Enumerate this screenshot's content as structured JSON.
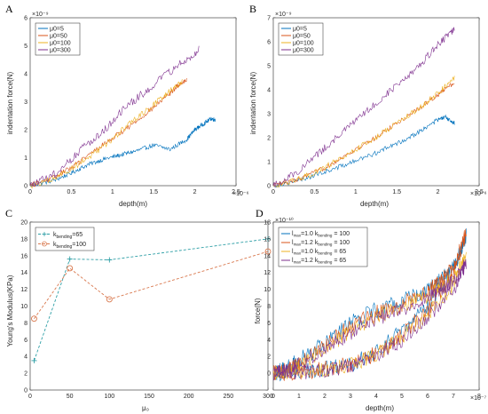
{
  "colors": {
    "blue": "#0072BD",
    "orange": "#D95319",
    "yellow": "#EDB120",
    "purple": "#7E2F8E",
    "teal": "#2E9FA6",
    "salmon": "#D9794F"
  },
  "chart_data": [
    {
      "panel": "A",
      "type": "line",
      "xlabel": "depth(m)",
      "ylabel": "indentation force(N)",
      "x_exponent": "×10⁻⁶",
      "y_exponent": "×10⁻⁹",
      "xlim": [
        0,
        2.5
      ],
      "ylim": [
        0,
        6
      ],
      "xticks": [
        0,
        0.5,
        1,
        1.5,
        2,
        2.5
      ],
      "xtick_labels": [
        "0",
        "0.5",
        "1",
        "1.5",
        "2",
        "2.5"
      ],
      "yticks": [
        0,
        1,
        2,
        3,
        4,
        5,
        6
      ],
      "ytick_labels": [
        "0",
        "1",
        "2",
        "3",
        "4",
        "5",
        "6"
      ],
      "legend_position": "top-left",
      "series": [
        {
          "name": "μ0=5",
          "color": "#0072BD",
          "noise": 0.08,
          "x": [
            0,
            0.3,
            0.5,
            0.7,
            0.9,
            1.1,
            1.3,
            1.5,
            1.7,
            1.9,
            2.0,
            2.1,
            2.2,
            2.25
          ],
          "y": [
            0,
            0.2,
            0.45,
            0.75,
            0.95,
            1.1,
            1.25,
            1.45,
            1.3,
            1.65,
            2.0,
            2.2,
            2.4,
            2.35
          ]
        },
        {
          "name": "μ0=50",
          "color": "#D95319",
          "noise": 0.09,
          "x": [
            0,
            0.3,
            0.6,
            0.9,
            1.2,
            1.5,
            1.7,
            1.8,
            1.9
          ],
          "y": [
            0,
            0.3,
            0.85,
            1.5,
            2.1,
            2.8,
            3.3,
            3.6,
            3.8
          ]
        },
        {
          "name": "μ0=100",
          "color": "#EDB120",
          "noise": 0.11,
          "x": [
            0,
            0.3,
            0.6,
            0.9,
            1.2,
            1.5,
            1.7,
            1.85
          ],
          "y": [
            0,
            0.25,
            0.8,
            1.4,
            2.2,
            2.9,
            3.4,
            3.75
          ]
        },
        {
          "name": "μ0=300",
          "color": "#7E2F8E",
          "noise": 0.15,
          "x": [
            0,
            0.3,
            0.6,
            0.9,
            1.2,
            1.5,
            1.8,
            2.05
          ],
          "y": [
            0,
            0.4,
            1.25,
            2.0,
            2.9,
            3.6,
            4.3,
            4.85
          ]
        }
      ]
    },
    {
      "panel": "B",
      "type": "line",
      "xlabel": "depth(m)",
      "ylabel": "indentation force(N)",
      "x_exponent": "×10⁻⁶",
      "y_exponent": "×10⁻⁹",
      "xlim": [
        0,
        2.5
      ],
      "ylim": [
        0,
        7
      ],
      "xticks": [
        0,
        0.5,
        1,
        1.5,
        2,
        2.5
      ],
      "xtick_labels": [
        "0",
        "0.5",
        "1",
        "1.5",
        "2",
        "2.5"
      ],
      "yticks": [
        0,
        1,
        2,
        3,
        4,
        5,
        6,
        7
      ],
      "ytick_labels": [
        "0",
        "1",
        "2",
        "3",
        "4",
        "5",
        "6",
        "7"
      ],
      "legend_position": "top-left",
      "series": [
        {
          "name": "μ0=5",
          "color": "#0072BD",
          "noise": 0.1,
          "x": [
            0,
            0.3,
            0.6,
            0.9,
            1.2,
            1.5,
            1.8,
            2.0,
            2.1,
            2.2
          ],
          "y": [
            0,
            0.2,
            0.55,
            0.9,
            1.3,
            1.75,
            2.3,
            2.75,
            2.85,
            2.6
          ]
        },
        {
          "name": "μ0=50",
          "color": "#D95319",
          "noise": 0.1,
          "x": [
            0,
            0.3,
            0.6,
            0.9,
            1.2,
            1.5,
            1.8,
            2.0,
            2.2
          ],
          "y": [
            0,
            0.25,
            0.7,
            1.3,
            1.9,
            2.6,
            3.3,
            3.8,
            4.3
          ]
        },
        {
          "name": "μ0=100",
          "color": "#EDB120",
          "noise": 0.13,
          "x": [
            0,
            0.3,
            0.6,
            0.9,
            1.2,
            1.5,
            1.8,
            2.0,
            2.2
          ],
          "y": [
            0,
            0.25,
            0.7,
            1.3,
            1.9,
            2.6,
            3.3,
            3.85,
            4.5
          ]
        },
        {
          "name": "μ0=300",
          "color": "#7E2F8E",
          "noise": 0.15,
          "x": [
            0,
            0.3,
            0.6,
            0.9,
            1.2,
            1.5,
            1.8,
            2.0,
            2.2
          ],
          "y": [
            0,
            0.6,
            1.5,
            2.4,
            3.3,
            4.2,
            5.1,
            5.9,
            6.5
          ]
        }
      ]
    },
    {
      "panel": "C",
      "type": "line",
      "xlabel": "μ₀",
      "ylabel": "Young's Modulus(KPa)",
      "xlim": [
        0,
        300
      ],
      "ylim": [
        0,
        20
      ],
      "xticks": [
        0,
        50,
        100,
        150,
        200,
        250,
        300
      ],
      "xtick_labels": [
        "0",
        "50",
        "100",
        "150",
        "200",
        "250",
        "300"
      ],
      "yticks": [
        0,
        2,
        4,
        6,
        8,
        10,
        12,
        14,
        16,
        18,
        20
      ],
      "ytick_labels": [
        "0",
        "2",
        "4",
        "6",
        "8",
        "10",
        "12",
        "14",
        "16",
        "18",
        "20"
      ],
      "legend_position": "top-left",
      "series": [
        {
          "name_main": "k",
          "name_sub": "bending",
          "name_rest": "=65",
          "color": "#2E9FA6",
          "marker": "plus",
          "x": [
            5,
            50,
            100,
            300
          ],
          "y": [
            3.5,
            15.6,
            15.5,
            18
          ]
        },
        {
          "name_main": "k",
          "name_sub": "bending",
          "name_rest": "=100",
          "color": "#D9794F",
          "marker": "circle",
          "x": [
            5,
            50,
            100,
            300
          ],
          "y": [
            8.5,
            14.5,
            10.8,
            16.5
          ]
        }
      ]
    },
    {
      "panel": "D",
      "type": "line",
      "xlabel": "depth(m)",
      "ylabel": "force(N)",
      "x_exponent": "×10⁻⁷",
      "y_exponent": "×10⁻¹⁰",
      "xlim": [
        0,
        8
      ],
      "ylim": [
        -2,
        18
      ],
      "xticks": [
        0,
        1,
        2,
        3,
        4,
        5,
        6,
        7,
        8
      ],
      "xtick_labels": [
        "0",
        "1",
        "2",
        "3",
        "4",
        "5",
        "6",
        "7",
        "8"
      ],
      "yticks": [
        0,
        2,
        4,
        6,
        8,
        10,
        12,
        14,
        16,
        18
      ],
      "ytick_labels": [
        "0",
        "2",
        "4",
        "6",
        "8",
        "10",
        "12",
        "14",
        "16",
        "18"
      ],
      "legend_position": "top-left",
      "series": [
        {
          "l1": "l",
          "l1sub": "max",
          "l2": "=1.0 k",
          "l2sub": "bending",
          "l3": " = 100",
          "color": "#0072BD",
          "noise": 1.0,
          "x": [
            0,
            0.5,
            1,
            2,
            3,
            4,
            5,
            6,
            6.5,
            7,
            7.5,
            7,
            6,
            5,
            4,
            3,
            2,
            1,
            0
          ],
          "y": [
            0,
            0.5,
            1.5,
            3.5,
            6,
            7.5,
            8.5,
            10,
            11,
            12.5,
            16.5,
            12.5,
            8,
            5,
            2.5,
            1,
            0.5,
            0.2,
            0
          ]
        },
        {
          "l1": "l",
          "l1sub": "max",
          "l2": "=1.2 k",
          "l2sub": "bending",
          "l3": " = 100",
          "color": "#D95319",
          "noise": 1.0,
          "x": [
            0,
            0.5,
            1,
            2,
            3,
            4,
            5,
            6,
            6.5,
            7,
            7.5,
            7,
            6,
            5,
            4,
            3,
            2,
            1,
            0
          ],
          "y": [
            0,
            0.4,
            1.2,
            3.2,
            5.6,
            7.2,
            8.2,
            9.8,
            10.8,
            12.5,
            16.8,
            12.0,
            7.5,
            4.6,
            2.4,
            1.0,
            0.5,
            0.2,
            0
          ]
        },
        {
          "l1": "l",
          "l1sub": "max",
          "l2": "=1.0 k",
          "l2sub": "bending",
          "l3": " = 65",
          "color": "#EDB120",
          "noise": 0.9,
          "x": [
            0,
            0.5,
            1,
            2,
            3,
            4,
            5,
            6,
            6.5,
            7,
            7.5,
            7,
            6,
            5,
            4,
            3,
            2,
            1,
            0
          ],
          "y": [
            0,
            0.3,
            1.0,
            2.8,
            5.0,
            6.8,
            7.8,
            9.2,
            10.2,
            11.5,
            14.0,
            10.5,
            7.0,
            4.2,
            2.2,
            1.0,
            0.4,
            0.1,
            0
          ]
        },
        {
          "l1": "l",
          "l1sub": "max",
          "l2": "=1.2 k",
          "l2sub": "bending",
          "l3": " = 65",
          "color": "#7E2F8E",
          "noise": 0.9,
          "x": [
            0,
            0.5,
            1,
            2,
            3,
            4,
            5,
            6,
            6.5,
            7,
            7.5,
            7,
            6,
            5,
            4,
            3,
            2,
            1,
            0
          ],
          "y": [
            0,
            0.3,
            1.0,
            2.7,
            4.8,
            6.5,
            7.5,
            9.0,
            10.0,
            11.0,
            13.0,
            10.0,
            6.6,
            4.0,
            2.0,
            0.9,
            0.4,
            0.1,
            0
          ]
        }
      ]
    }
  ]
}
